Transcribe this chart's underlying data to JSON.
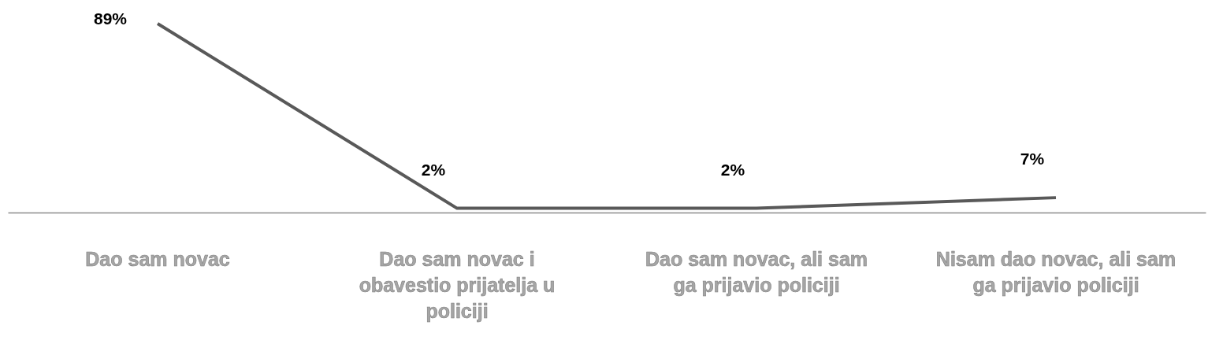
{
  "chart_data": {
    "type": "line",
    "categories": [
      "Dao sam novac",
      "Dao sam novac i obavestio prijatelja u policiji",
      "Dao sam novac, ali sam ga prijavio policiji",
      "Nisam dao novac, ali sam ga prijavio policiji"
    ],
    "values": [
      89,
      2,
      2,
      7
    ],
    "color": "#595959",
    "value_labels": [
      "89%",
      "2%",
      "2%",
      "7%"
    ],
    "marker": "none",
    "grid": false,
    "legend": false,
    "tick_labels": "x"
  }
}
